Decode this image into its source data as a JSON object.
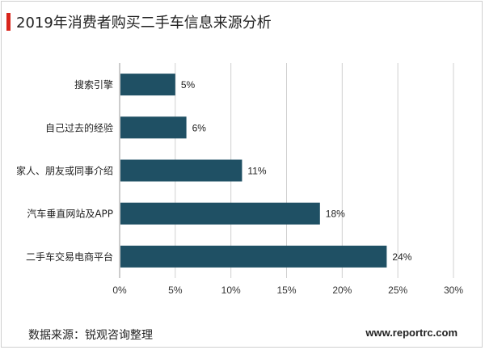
{
  "title": "2019年消费者购买二手车信息来源分析",
  "footer": {
    "source": "数据来源：锐观咨询整理",
    "url": "www.reportrc.com"
  },
  "colors": {
    "bar": "#1f5064",
    "accent": "#d9251c",
    "grid": "#d0d0d0"
  },
  "chart_data": {
    "type": "bar",
    "orientation": "horizontal",
    "categories": [
      "搜索引擎",
      "自己过去的经验",
      "家人、朋友或同事介绍",
      "汽车垂直网站及APP",
      "二手车交易电商平台"
    ],
    "values": [
      5,
      6,
      11,
      18,
      24
    ],
    "value_labels": [
      "5%",
      "6%",
      "11%",
      "18%",
      "24%"
    ],
    "xlim": [
      0,
      30
    ],
    "x_ticks": [
      0,
      5,
      10,
      15,
      20,
      25,
      30
    ],
    "x_tick_labels": [
      "0%",
      "5%",
      "10%",
      "15%",
      "20%",
      "25%",
      "30%"
    ],
    "grid": true
  }
}
